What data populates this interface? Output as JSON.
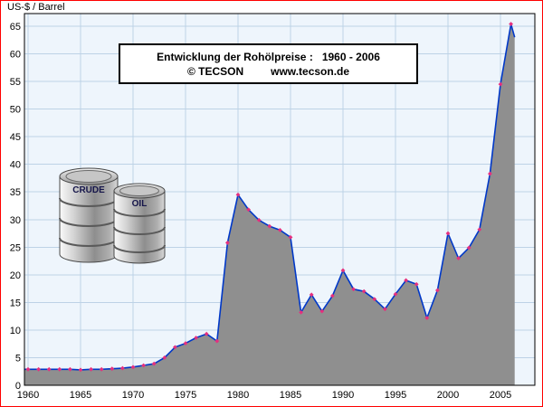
{
  "frame": {
    "border_color": "#ff0000"
  },
  "unit_label": "US-$ / Barrel",
  "title_box": {
    "line1": "Entwicklung der Rohölpreise :   1960 - 2006",
    "copyright": "© TECSON",
    "url": "www.tecson.de"
  },
  "barrels": {
    "left_label": "CRUDE",
    "right_label": "OIL"
  },
  "chart_data": {
    "type": "area",
    "title": "Entwicklung der Rohölpreise : 1960 - 2006",
    "xlabel": "",
    "ylabel": "US-$ / Barrel",
    "ylim": [
      0,
      65
    ],
    "xlim": [
      1959.6,
      2008.3
    ],
    "grid": true,
    "legend": "none",
    "x_ticks": [
      1960,
      1965,
      1970,
      1975,
      1980,
      1985,
      1990,
      1995,
      2000,
      2005
    ],
    "y_ticks": [
      0,
      5,
      10,
      15,
      20,
      25,
      30,
      35,
      40,
      45,
      50,
      55,
      60,
      65
    ],
    "x": [
      1960,
      1961,
      1962,
      1963,
      1964,
      1965,
      1966,
      1967,
      1968,
      1969,
      1970,
      1971,
      1972,
      1973,
      1974,
      1975,
      1976,
      1977,
      1978,
      1979,
      1980,
      1981,
      1982,
      1983,
      1984,
      1985,
      1986,
      1987,
      1988,
      1989,
      1990,
      1991,
      1992,
      1993,
      1994,
      1995,
      1996,
      1997,
      1998,
      1999,
      2000,
      2001,
      2002,
      2003,
      2004,
      2005,
      2006
    ],
    "values": [
      2.9,
      2.9,
      2.9,
      2.9,
      2.9,
      2.8,
      2.9,
      2.9,
      3.0,
      3.1,
      3.3,
      3.6,
      3.9,
      5.0,
      6.9,
      7.6,
      8.6,
      9.3,
      8.0,
      25.8,
      34.5,
      31.8,
      29.9,
      28.8,
      28.1,
      26.8,
      13.2,
      16.4,
      13.4,
      16.2,
      20.8,
      17.4,
      17.0,
      15.6,
      13.8,
      16.5,
      19.0,
      18.3,
      12.2,
      17.2,
      27.5,
      23.0,
      24.9,
      28.2,
      38.3,
      54.5,
      65.4
    ],
    "end_segment": {
      "x": 2006.35,
      "value": 63.0
    },
    "colors": {
      "line": "#0038c8",
      "area": "#8f8f8f",
      "marker": "#e5307e",
      "grid": "#bdd2e6",
      "plot_bg": "#eef5fc",
      "plot_border": "#000000",
      "frame": "#ff0000",
      "text": "#000000"
    }
  }
}
